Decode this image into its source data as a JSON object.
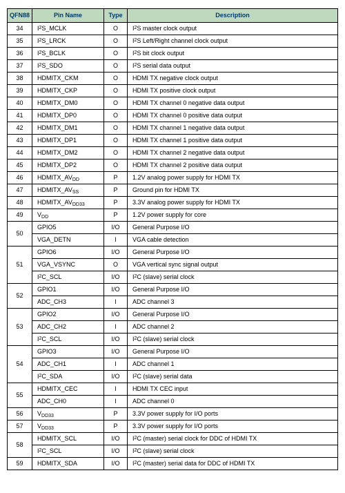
{
  "header": {
    "qfn": "QFN88",
    "pin": "Pin Name",
    "type": "Type",
    "desc": "Description"
  },
  "colors": {
    "header_bg": "#bfd9bf",
    "header_fg": "#003b6f",
    "border": "#000000"
  },
  "rows": [
    {
      "pin": "34",
      "name": "I²S_MCLK",
      "type": "O",
      "desc": "I²S master clock output"
    },
    {
      "pin": "35",
      "name": "I²S_LRCK",
      "type": "O",
      "desc": "I²S Left/Right channel clock output"
    },
    {
      "pin": "36",
      "name": "I²S_BCLK",
      "type": "O",
      "desc": "I²S bit clock output"
    },
    {
      "pin": "37",
      "name": "I²S_SDO",
      "type": "O",
      "desc": "I²S serial data output"
    },
    {
      "pin": "38",
      "name": "HDMITX_CKM",
      "type": "O",
      "desc": "HDMI TX negative clock output"
    },
    {
      "pin": "39",
      "name": "HDMITX_CKP",
      "type": "O",
      "desc": "HDMI TX positive clock output"
    },
    {
      "pin": "40",
      "name": "HDMITX_DM0",
      "type": "O",
      "desc": "HDMI TX channel 0 negative data output"
    },
    {
      "pin": "41",
      "name": "HDMITX_DP0",
      "type": "O",
      "desc": "HDMI TX channel 0 positive data output"
    },
    {
      "pin": "42",
      "name": "HDMITX_DM1",
      "type": "O",
      "desc": "HDMI TX channel 1 negative data output"
    },
    {
      "pin": "43",
      "name": "HDMITX_DP1",
      "type": "O",
      "desc": "HDMI TX channel 1 positive data output"
    },
    {
      "pin": "44",
      "name": "HDMITX_DM2",
      "type": "O",
      "desc": "HDMI TX channel 2 negative data output"
    },
    {
      "pin": "45",
      "name": "HDMITX_DP2",
      "type": "O",
      "desc": "HDMI TX channel 2 positive data output"
    },
    {
      "pin": "46",
      "name": "HDMITX_AVᴅᴅ",
      "type": "P",
      "desc": "1.2V analog power supply for HDMI TX"
    },
    {
      "pin": "47",
      "name": "HDMITX_AVss",
      "type": "P",
      "desc": "Ground pin for HDMI TX"
    },
    {
      "pin": "48",
      "name": "HDMITX_AVᴅᴅ33",
      "type": "P",
      "desc": "3.3V analog power supply for HDMI TX"
    },
    {
      "pin": "49",
      "name": "Vᴅᴅ",
      "type": "P",
      "desc": "1.2V power supply for core"
    },
    {
      "pin": "50",
      "span": 2,
      "name": "GPIO5",
      "type": "I/O",
      "desc": "General Purpose I/O"
    },
    {
      "name": "VGA_DETN",
      "type": "I",
      "desc": "VGA cable detection"
    },
    {
      "pin": "51",
      "span": 3,
      "name": "GPIO6",
      "type": "I/O",
      "desc": "General Purpose I/O"
    },
    {
      "name": "VGA_VSYNC",
      "type": "O",
      "desc": "VGA vertical sync signal output"
    },
    {
      "name": "I²C_SCL",
      "type": "I/O",
      "desc": "I²C (slave) serial clock"
    },
    {
      "pin": "52",
      "span": 2,
      "name": "GPIO1",
      "type": "I/O",
      "desc": "General Purpose I/O"
    },
    {
      "name": "ADC_CH3",
      "type": "I",
      "desc": "ADC channel 3"
    },
    {
      "pin": "53",
      "span": 3,
      "name": "GPIO2",
      "type": "I/O",
      "desc": "General Purpose I/O"
    },
    {
      "name": "ADC_CH2",
      "type": "I",
      "desc": "ADC channel 2"
    },
    {
      "name": "I²C_SCL",
      "type": "I/O",
      "desc": "I²C (slave) serial clock"
    },
    {
      "pin": "54",
      "span": 3,
      "name": "GPIO3",
      "type": "I/O",
      "desc": "General Purpose I/O"
    },
    {
      "name": "ADC_CH1",
      "type": "I",
      "desc": "ADC channel 1"
    },
    {
      "name": "I²C_SDA",
      "type": "I/O",
      "desc": "I²C (slave) serial data"
    },
    {
      "pin": "55",
      "span": 2,
      "name": "HDMITX_CEC",
      "type": "I",
      "desc": "HDMI TX CEC input"
    },
    {
      "name": "ADC_CH0",
      "type": "I",
      "desc": "ADC channel 0"
    },
    {
      "pin": "56",
      "name": "Vᴅᴅ33",
      "type": "P",
      "desc": "3.3V power supply for I/O ports"
    },
    {
      "pin": "57",
      "name": "Vᴅᴅ33",
      "type": "P",
      "desc": "3.3V power supply for I/O ports"
    },
    {
      "pin": "58",
      "span": 2,
      "name": "HDMITX_SCL",
      "type": "I/O",
      "desc": "I²C (master) serial clock for DDC of HDMI TX"
    },
    {
      "name": "I²C_SCL",
      "type": "I/O",
      "desc": "I²C (slave) serial clock"
    },
    {
      "pin": "59",
      "name": "HDMITX_SDA",
      "type": "I/O",
      "desc": "I²C (master) serial data for DDC of HDMI TX"
    }
  ]
}
